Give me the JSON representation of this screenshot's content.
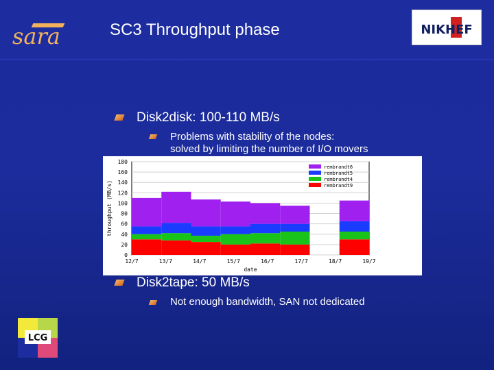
{
  "header": {
    "title": "SC3 Throughput phase",
    "sara_logo_text": "sara",
    "nikhef_logo_text": "NIKHEF"
  },
  "bullets": [
    {
      "text": "Disk2disk: 100-110 MB/s",
      "sub": [
        "Problems with stability of the nodes:",
        "solved by limiting the number of I/O movers"
      ]
    },
    {
      "text": "Disk2tape: 50 MB/s",
      "sub": [
        "Not enough bandwidth, SAN not dedicated"
      ]
    }
  ],
  "footer": {
    "lcg_logo_text": "LCG"
  },
  "chart_data": {
    "type": "area",
    "title": "",
    "xlabel": "date",
    "ylabel": "throughput (MB/s)",
    "ylim": [
      0,
      180
    ],
    "yticks": [
      "0",
      "20",
      "40",
      "60",
      "80",
      "100",
      "120",
      "140",
      "160",
      "180"
    ],
    "x_ticks": [
      "12/7",
      "13/7",
      "14/7",
      "15/7",
      "16/7",
      "17/7",
      "18/7",
      "19/7"
    ],
    "series_order": [
      "rembrandt9",
      "rembrandt4",
      "rembrandt5",
      "rembrandt6"
    ],
    "series": [
      {
        "name": "rembrandt6",
        "color": "#a020f0"
      },
      {
        "name": "rembrandt5",
        "color": "#1a3cff"
      },
      {
        "name": "rembrandt4",
        "color": "#19c319"
      },
      {
        "name": "rembrandt9",
        "color": "#ff0000"
      }
    ],
    "stacked_values_by_day": [
      {
        "date": "12/7",
        "rembrandt9": 30,
        "rembrandt4": 10,
        "rembrandt5": 15,
        "rembrandt6": 55
      },
      {
        "date": "13/7",
        "rembrandt9": 28,
        "rembrandt4": 14,
        "rembrandt5": 20,
        "rembrandt6": 60
      },
      {
        "date": "14/7",
        "rembrandt9": 25,
        "rembrandt4": 12,
        "rembrandt5": 18,
        "rembrandt6": 52
      },
      {
        "date": "15/7",
        "rembrandt9": 20,
        "rembrandt4": 20,
        "rembrandt5": 15,
        "rembrandt6": 48
      },
      {
        "date": "16/7",
        "rembrandt9": 22,
        "rembrandt4": 20,
        "rembrandt5": 18,
        "rembrandt6": 40
      },
      {
        "date": "17/7",
        "rembrandt9": 20,
        "rembrandt4": 25,
        "rembrandt5": 15,
        "rembrandt6": 35
      },
      {
        "date": "18/7",
        "rembrandt9": 0,
        "rembrandt4": 0,
        "rembrandt5": 0,
        "rembrandt6": 0
      },
      {
        "date": "19/7",
        "rembrandt9": 30,
        "rembrandt4": 15,
        "rembrandt5": 20,
        "rembrandt6": 40
      }
    ]
  }
}
